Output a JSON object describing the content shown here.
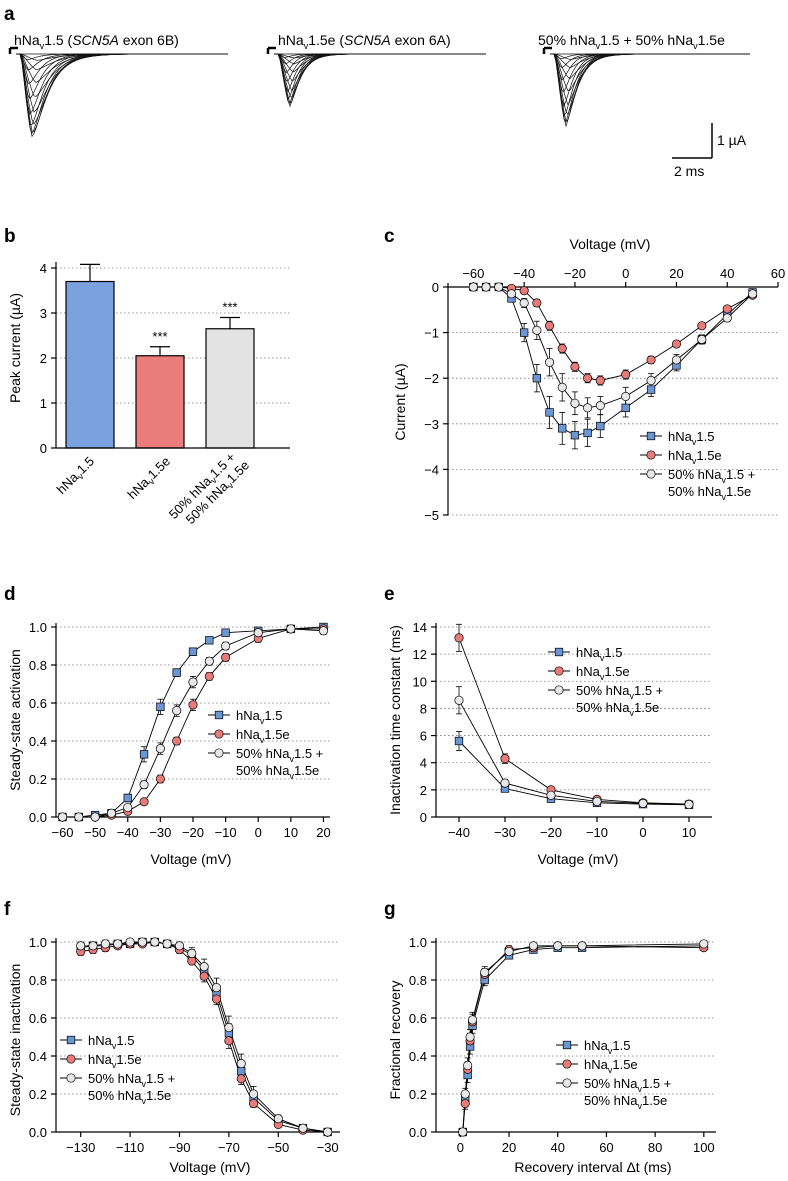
{
  "panel_labels": [
    "a",
    "b",
    "c",
    "d",
    "e",
    "f",
    "g"
  ],
  "series_labels": [
    {
      "main": "hNa",
      "sub": "v",
      "rest": "1.5"
    },
    {
      "main": "hNa",
      "sub": "v",
      "rest": "1.5e"
    },
    {
      "main": "50% hNa",
      "sub": "v",
      "rest": "1.5 +",
      "line2_main": "50% hNa",
      "line2_sub": "v",
      "line2_rest": "1.5e"
    }
  ],
  "colors": {
    "s0": "#6b96d6",
    "s1": "#e87b79",
    "s2": "#e8e8e8",
    "bar0": "#7ba2df",
    "bar1": "#ea7d7a",
    "bar2": "#e3e3e3"
  },
  "trace_titles": [
    {
      "main": "hNa",
      "sub": "v",
      "rest": "1.5 (",
      "italic": "SCN5A",
      "tail": " exon 6B)"
    },
    {
      "main": "hNa",
      "sub": "v",
      "rest": "1.5e (",
      "italic": "SCN5A",
      "tail": " exon 6A)"
    },
    {
      "main": "50% hNa",
      "sub": "v",
      "rest": "1.5 + 50% hNa",
      "sub2": "v",
      "tail": "1.5e"
    }
  ],
  "scale_bar": {
    "current": "1 µA",
    "time": "2 ms"
  },
  "chart_data": [
    {
      "panel": "b",
      "type": "bar",
      "ylabel": "Peak current (µA)",
      "ylim": [
        0,
        4
      ],
      "yticks": [
        0,
        1,
        2,
        3,
        4
      ],
      "values": [
        3.7,
        2.05,
        2.65
      ],
      "errors": [
        0.38,
        0.2,
        0.25
      ],
      "significance": [
        "",
        "***",
        "***"
      ],
      "grid": true
    },
    {
      "panel": "c",
      "type": "line",
      "xlabel": "Voltage (mV)",
      "ylabel": "Current (µA)",
      "xlim": [
        -70,
        60
      ],
      "ylim": [
        -5,
        0
      ],
      "xticks": [
        -60,
        -40,
        -20,
        0,
        20,
        40,
        60
      ],
      "yticks": [
        0,
        -1,
        -2,
        -3,
        -4,
        -5
      ],
      "x": [
        -60,
        -55,
        -50,
        -45,
        -40,
        -35,
        -30,
        -25,
        -20,
        -15,
        -10,
        0,
        10,
        20,
        30,
        40,
        50
      ],
      "series": [
        {
          "y": [
            0,
            0,
            0,
            -0.25,
            -1.0,
            -2.0,
            -2.75,
            -3.1,
            -3.25,
            -3.2,
            -3.05,
            -2.65,
            -2.25,
            -1.72,
            -1.15,
            -0.6,
            -0.12
          ],
          "err": [
            0,
            0,
            0,
            0.05,
            0.2,
            0.3,
            0.35,
            0.35,
            0.3,
            0.3,
            0.25,
            0.2,
            0.15,
            0.12,
            0.1,
            0.08,
            0.05
          ]
        },
        {
          "y": [
            0,
            0,
            0,
            -0.03,
            -0.08,
            -0.35,
            -0.85,
            -1.35,
            -1.75,
            -2.0,
            -2.05,
            -1.92,
            -1.6,
            -1.25,
            -0.85,
            -0.48,
            -0.18
          ],
          "err": [
            0,
            0,
            0,
            0.02,
            0.05,
            0.08,
            0.1,
            0.1,
            0.1,
            0.1,
            0.1,
            0.1,
            0.08,
            0.07,
            0.06,
            0.05,
            0.03
          ]
        },
        {
          "y": [
            0,
            0,
            0,
            -0.15,
            -0.35,
            -0.95,
            -1.65,
            -2.2,
            -2.55,
            -2.65,
            -2.6,
            -2.4,
            -2.05,
            -1.6,
            -1.15,
            -0.68,
            -0.15
          ],
          "err": [
            0,
            0,
            0,
            0.05,
            0.1,
            0.2,
            0.3,
            0.3,
            0.25,
            0.22,
            0.2,
            0.2,
            0.15,
            0.12,
            0.1,
            0.08,
            0.05
          ]
        }
      ],
      "legend": "bottom-right",
      "grid": true
    },
    {
      "panel": "d",
      "type": "line",
      "xlabel": "Voltage (mV)",
      "ylabel": "Steady-state activation",
      "xlim": [
        -62,
        22
      ],
      "ylim": [
        0,
        1.0
      ],
      "xticks": [
        -60,
        -50,
        -40,
        -30,
        -20,
        -10,
        0,
        10,
        20
      ],
      "yticks": [
        0.0,
        0.2,
        0.4,
        0.6,
        0.8,
        1.0
      ],
      "x": [
        -60,
        -55,
        -50,
        -45,
        -40,
        -35,
        -30,
        -25,
        -20,
        -15,
        -10,
        0,
        10,
        20
      ],
      "series": [
        {
          "y": [
            0,
            0,
            0.01,
            0.02,
            0.1,
            0.33,
            0.58,
            0.76,
            0.87,
            0.93,
            0.97,
            0.98,
            0.99,
            1.0
          ],
          "err": [
            0,
            0,
            0,
            0.01,
            0.02,
            0.04,
            0.04,
            0.02,
            0.02,
            0.01,
            0.01,
            0.01,
            0.01,
            0.01
          ]
        },
        {
          "y": [
            0,
            0,
            0,
            0.01,
            0.03,
            0.08,
            0.2,
            0.4,
            0.59,
            0.74,
            0.84,
            0.94,
            0.99,
            0.99
          ],
          "err": [
            0,
            0,
            0,
            0.01,
            0.01,
            0.01,
            0.02,
            0.02,
            0.03,
            0.02,
            0.02,
            0.02,
            0.01,
            0.02
          ]
        },
        {
          "y": [
            0,
            0,
            0,
            0.02,
            0.05,
            0.17,
            0.36,
            0.56,
            0.71,
            0.82,
            0.9,
            0.97,
            0.99,
            0.98
          ],
          "err": [
            0,
            0,
            0,
            0.01,
            0.01,
            0.02,
            0.03,
            0.03,
            0.03,
            0.02,
            0.02,
            0.02,
            0.01,
            0.02
          ]
        }
      ],
      "legend": "bottom-right",
      "grid": true
    },
    {
      "panel": "e",
      "type": "line",
      "xlabel": "Voltage (mV)",
      "ylabel": "Inactivation time constant (ms)",
      "xlim": [
        -45,
        15
      ],
      "ylim": [
        0,
        14
      ],
      "xticks": [
        -40,
        -30,
        -20,
        -10,
        0,
        10
      ],
      "yticks": [
        0,
        2,
        4,
        6,
        8,
        10,
        12,
        14
      ],
      "x": [
        -40,
        -30,
        -20,
        -10,
        0,
        10
      ],
      "series": [
        {
          "y": [
            5.6,
            2.1,
            1.35,
            1.05,
            0.95,
            0.9
          ],
          "err": [
            0.7,
            0.2,
            0.1,
            0.08,
            0.05,
            0.05
          ]
        },
        {
          "y": [
            13.2,
            4.3,
            2.0,
            1.3,
            1.05,
            0.95
          ],
          "err": [
            1.0,
            0.35,
            0.15,
            0.1,
            0.05,
            0.05
          ]
        },
        {
          "y": [
            8.6,
            2.5,
            1.6,
            1.15,
            1.0,
            0.92
          ],
          "err": [
            1.0,
            0.25,
            0.12,
            0.08,
            0.05,
            0.05
          ]
        }
      ],
      "legend": "top-right",
      "grid": true
    },
    {
      "panel": "f",
      "type": "line",
      "xlabel": "Voltage (mV)",
      "ylabel": "Steady-state inactivation",
      "xlim": [
        -140,
        -25
      ],
      "ylim": [
        0,
        1.0
      ],
      "xticks": [
        -130,
        -110,
        -90,
        -70,
        -50,
        -30
      ],
      "yticks": [
        0.0,
        0.2,
        0.4,
        0.6,
        0.8,
        1.0
      ],
      "x": [
        -130,
        -125,
        -120,
        -115,
        -110,
        -105,
        -100,
        -95,
        -90,
        -85,
        -80,
        -75,
        -70,
        -65,
        -60,
        -50,
        -40,
        -30
      ],
      "series": [
        {
          "y": [
            0.97,
            0.98,
            0.98,
            0.99,
            0.99,
            1.0,
            1.0,
            0.99,
            0.97,
            0.93,
            0.85,
            0.73,
            0.52,
            0.32,
            0.18,
            0.06,
            0.02,
            0.0
          ],
          "err": [
            0.02,
            0.02,
            0.02,
            0.01,
            0.01,
            0.01,
            0.01,
            0.01,
            0.02,
            0.03,
            0.03,
            0.04,
            0.05,
            0.04,
            0.03,
            0.02,
            0.01,
            0.0
          ]
        },
        {
          "y": [
            0.95,
            0.96,
            0.97,
            0.98,
            0.99,
            0.99,
            1.0,
            0.99,
            0.96,
            0.9,
            0.82,
            0.7,
            0.48,
            0.28,
            0.15,
            0.04,
            0.01,
            0.0
          ],
          "err": [
            0.02,
            0.02,
            0.02,
            0.01,
            0.01,
            0.01,
            0.01,
            0.01,
            0.02,
            0.02,
            0.03,
            0.03,
            0.04,
            0.03,
            0.02,
            0.01,
            0.01,
            0.0
          ]
        },
        {
          "y": [
            0.98,
            0.98,
            0.99,
            0.99,
            1.0,
            1.0,
            1.0,
            0.99,
            0.98,
            0.94,
            0.87,
            0.76,
            0.55,
            0.36,
            0.2,
            0.07,
            0.02,
            0.0
          ],
          "err": [
            0.02,
            0.02,
            0.02,
            0.01,
            0.01,
            0.01,
            0.01,
            0.01,
            0.02,
            0.03,
            0.04,
            0.05,
            0.06,
            0.05,
            0.04,
            0.02,
            0.01,
            0.0
          ]
        }
      ],
      "legend": "bottom-left",
      "grid": true
    },
    {
      "panel": "g",
      "type": "line",
      "xlabel": "Recovery interval Δt (ms)",
      "ylabel": "Fractional recovery",
      "xlim": [
        -10,
        105
      ],
      "ylim": [
        0,
        1.0
      ],
      "xticks": [
        0,
        20,
        40,
        60,
        80,
        100
      ],
      "yticks": [
        0.0,
        0.2,
        0.4,
        0.6,
        0.8,
        1.0
      ],
      "x": [
        1,
        2,
        3,
        4,
        5,
        10,
        20,
        30,
        40,
        50,
        100
      ],
      "series": [
        {
          "y": [
            0.0,
            0.18,
            0.3,
            0.45,
            0.56,
            0.8,
            0.93,
            0.96,
            0.97,
            0.97,
            0.98
          ],
          "err": [
            0.01,
            0.03,
            0.04,
            0.04,
            0.04,
            0.03,
            0.02,
            0.01,
            0.01,
            0.01,
            0.01
          ]
        },
        {
          "y": [
            0.0,
            0.15,
            0.33,
            0.48,
            0.58,
            0.83,
            0.96,
            0.97,
            0.98,
            0.98,
            0.97
          ],
          "err": [
            0.01,
            0.03,
            0.04,
            0.04,
            0.04,
            0.03,
            0.02,
            0.01,
            0.01,
            0.01,
            0.01
          ]
        },
        {
          "y": [
            0.0,
            0.2,
            0.35,
            0.5,
            0.59,
            0.84,
            0.95,
            0.98,
            0.98,
            0.98,
            0.99
          ],
          "err": [
            0.01,
            0.03,
            0.04,
            0.04,
            0.04,
            0.03,
            0.02,
            0.01,
            0.01,
            0.01,
            0.01
          ]
        }
      ],
      "legend": "bottom-right",
      "grid": true
    }
  ]
}
